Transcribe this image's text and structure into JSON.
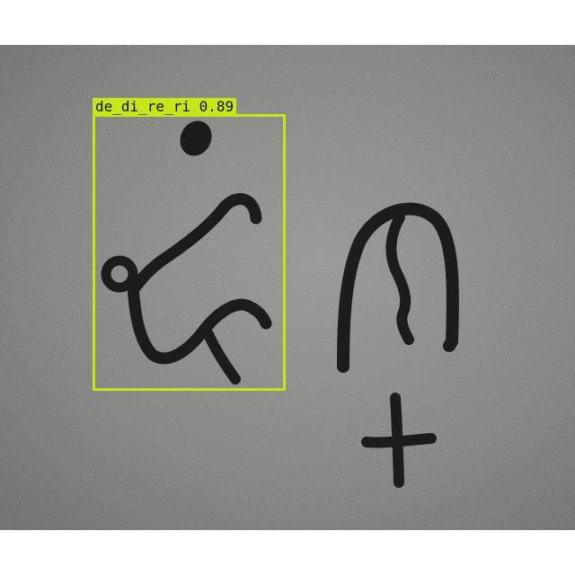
{
  "detection": {
    "label": "de_di_re_ri 0.89",
    "box_color": "#c6e61a"
  },
  "image": {
    "background": "#8a8a88",
    "ink_color": "#1c1c1c"
  }
}
